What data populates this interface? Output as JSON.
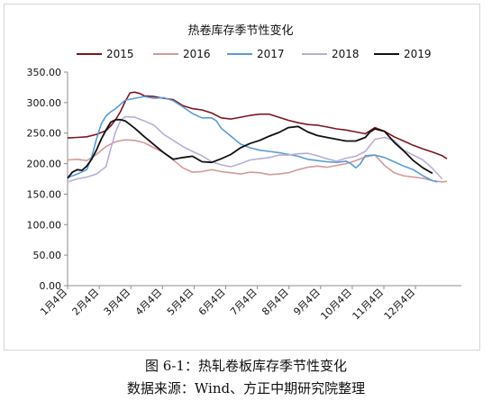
{
  "caption": {
    "figure_title": "图 6-1：热轧卷板库存季节性变化",
    "source": "数据来源：Wind、方正中期研究院整理"
  },
  "colors": {
    "2015": "#7b1620",
    "2016": "#d49a9a",
    "2017": "#5b9bd5",
    "2018": "#b9aed6",
    "2019": "#111111",
    "axis": "#8c8c8c",
    "text": "#111111"
  },
  "chart_data": {
    "type": "line",
    "title": "热卷库存季节性变化",
    "xlabel": "",
    "ylabel": "",
    "ylim": [
      0,
      350
    ],
    "yticks": [
      "0.00",
      "50.00",
      "100.00",
      "150.00",
      "200.00",
      "250.00",
      "300.00",
      "350.00"
    ],
    "xticks": [
      "1月4日",
      "2月4日",
      "3月4日",
      "4月4日",
      "5月4日",
      "6月4日",
      "7月4日",
      "8月4日",
      "9月4日",
      "10月4日",
      "11月4日",
      "12月4日"
    ],
    "x_unit": "week",
    "grid": false,
    "legend": "top",
    "series": [
      {
        "name": "2015",
        "x": [
          0,
          2,
          4,
          6,
          8,
          9,
          10,
          11,
          12,
          13,
          14,
          15,
          16,
          18,
          20,
          22,
          24,
          26,
          28,
          30,
          32,
          34,
          36,
          38,
          40,
          42,
          44,
          46,
          48,
          50,
          52,
          54,
          56,
          58,
          60,
          62,
          64,
          66,
          68,
          70,
          72,
          74,
          76,
          78,
          79
        ],
        "y": [
          242,
          243,
          244,
          248,
          254,
          262,
          272,
          285,
          302,
          316,
          317,
          315,
          311,
          310,
          307,
          305,
          295,
          290,
          288,
          283,
          275,
          273,
          276,
          279,
          281,
          281,
          276,
          271,
          267,
          264,
          263,
          260,
          257,
          255,
          252,
          249,
          259,
          253,
          244,
          237,
          230,
          224,
          219,
          213,
          208
        ]
      },
      {
        "name": "2016",
        "x": [
          0,
          2,
          4,
          6,
          8,
          10,
          12,
          14,
          16,
          18,
          20,
          22,
          24,
          26,
          28,
          30,
          32,
          34,
          36,
          38,
          40,
          42,
          44,
          46,
          48,
          50,
          52,
          54,
          56,
          58,
          60,
          62,
          64,
          66,
          68,
          70,
          72,
          74,
          76,
          78,
          79
        ],
        "y": [
          206,
          207,
          205,
          215,
          228,
          236,
          239,
          238,
          234,
          226,
          218,
          206,
          193,
          186,
          187,
          190,
          187,
          185,
          183,
          186,
          185,
          182,
          183,
          185,
          190,
          194,
          196,
          194,
          197,
          200,
          205,
          211,
          214,
          197,
          185,
          180,
          178,
          176,
          172,
          170,
          171
        ]
      },
      {
        "name": "2017",
        "x": [
          0,
          2,
          4,
          5,
          6,
          7,
          8,
          9,
          10,
          12,
          14,
          16,
          18,
          20,
          22,
          24,
          26,
          28,
          30,
          31,
          32,
          34,
          36,
          38,
          40,
          42,
          44,
          46,
          48,
          50,
          52,
          54,
          56,
          58,
          59,
          60,
          61,
          62,
          64,
          66,
          68,
          70,
          72,
          74,
          76,
          77
        ],
        "y": [
          177,
          183,
          190,
          210,
          240,
          265,
          278,
          285,
          290,
          304,
          307,
          310,
          307,
          308,
          303,
          293,
          282,
          275,
          275,
          270,
          258,
          245,
          232,
          226,
          222,
          220,
          218,
          215,
          212,
          207,
          205,
          203,
          202,
          204,
          200,
          193,
          200,
          213,
          214,
          210,
          203,
          196,
          190,
          180,
          172,
          170
        ]
      },
      {
        "name": "2018",
        "x": [
          0,
          2,
          4,
          6,
          8,
          9,
          10,
          11,
          12,
          14,
          16,
          18,
          20,
          22,
          24,
          26,
          28,
          30,
          32,
          34,
          36,
          38,
          40,
          42,
          44,
          46,
          48,
          50,
          52,
          54,
          56,
          58,
          60,
          62,
          64,
          66,
          68,
          70,
          72,
          74,
          76,
          78
        ],
        "y": [
          170,
          175,
          178,
          183,
          195,
          225,
          252,
          270,
          277,
          276,
          270,
          263,
          248,
          238,
          228,
          220,
          213,
          203,
          198,
          195,
          200,
          206,
          208,
          210,
          214,
          214,
          216,
          217,
          213,
          208,
          204,
          209,
          212,
          220,
          240,
          243,
          238,
          222,
          214,
          206,
          192,
          175
        ]
      },
      {
        "name": "2019",
        "x": [
          0,
          1,
          2,
          3,
          4,
          5,
          6,
          7,
          8,
          9,
          10,
          11,
          12,
          14,
          16,
          18,
          20,
          22,
          24,
          26,
          28,
          30,
          32,
          34,
          36,
          38,
          40,
          42,
          44,
          46,
          48,
          50,
          52,
          54,
          56,
          58,
          60,
          62,
          63,
          64,
          66,
          68,
          70,
          72,
          74,
          76
        ],
        "y": [
          176,
          186,
          190,
          189,
          196,
          207,
          222,
          240,
          255,
          268,
          272,
          272,
          270,
          258,
          244,
          231,
          218,
          207,
          210,
          212,
          203,
          202,
          208,
          215,
          226,
          233,
          238,
          245,
          251,
          259,
          261,
          252,
          246,
          243,
          240,
          237,
          237,
          243,
          252,
          257,
          253,
          235,
          221,
          205,
          193,
          184
        ]
      }
    ]
  }
}
